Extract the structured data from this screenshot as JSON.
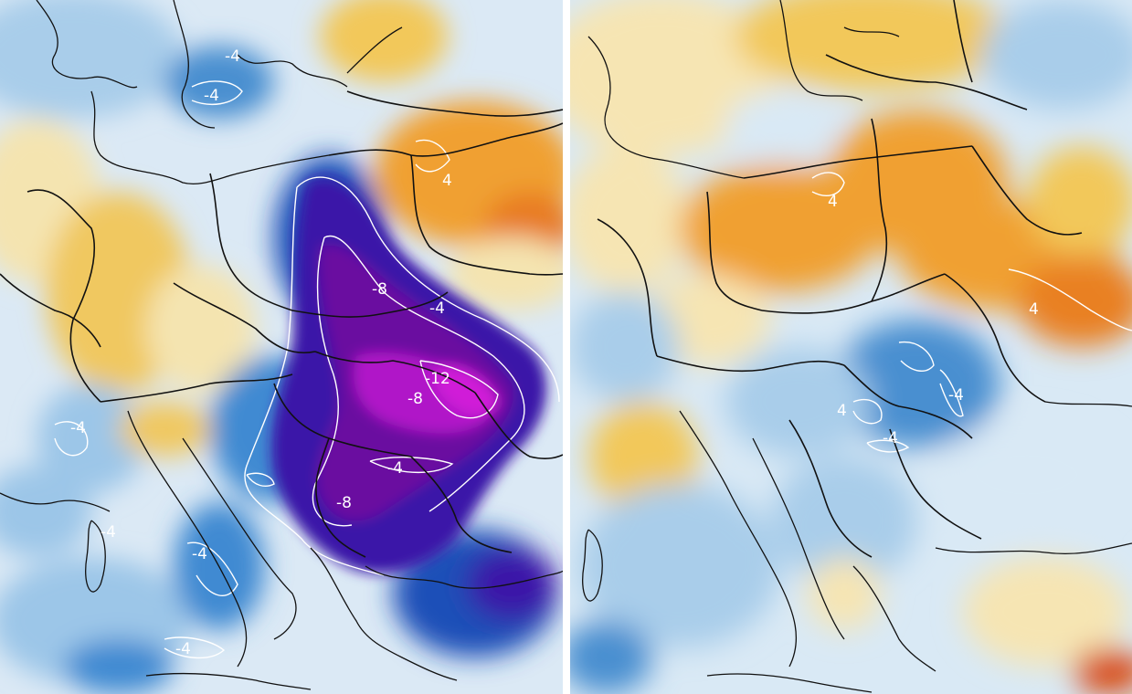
{
  "maps": [
    {
      "id": "left",
      "contour_labels": [
        "-4",
        "-4",
        "4",
        "-8",
        "-4",
        "-12",
        "-8",
        "-4",
        "-8",
        "-4",
        "-4",
        "-4",
        "-4"
      ],
      "color_scale": {
        "deep_magenta": "#d01ed8",
        "purple": "#6a0fa0",
        "indigo": "#3a16a8",
        "dark_blue": "#1e4fb8",
        "blue": "#3f8ad2",
        "light_blue": "#9cc6e8",
        "pale_blue": "#d7e8f5",
        "white": "#f2f6fa",
        "pale_yellow": "#f4e4b0",
        "yellow": "#f0c860",
        "orange": "#f0a030",
        "dark_orange": "#e87a20",
        "red": "#d84010"
      }
    },
    {
      "id": "right",
      "contour_labels": [
        "4",
        "4",
        "-4",
        "-4",
        "4"
      ],
      "color_scale": {
        "blue": "#4a8fd0",
        "light_blue": "#a9cdea",
        "pale_blue": "#d9e9f5",
        "pale_yellow": "#f6e5b3",
        "yellow": "#f2c85a",
        "orange": "#f0a030",
        "dark_orange": "#e98020",
        "red": "#d84a10"
      }
    }
  ],
  "line_colors": {
    "borders": "#111111",
    "contours": "#ffffff"
  }
}
